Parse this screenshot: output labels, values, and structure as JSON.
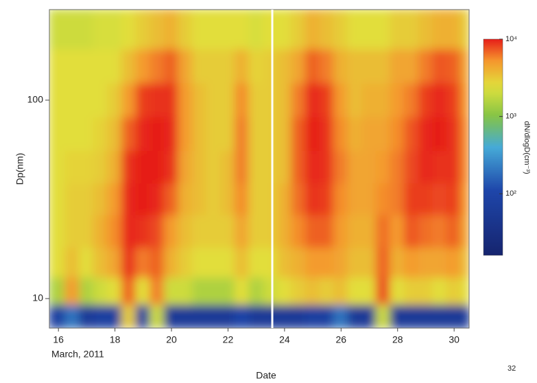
{
  "chart_data": {
    "type": "heatmap",
    "xlabel": "Date",
    "date_note": "March, 2011",
    "ylabel": "Dp(nm)",
    "colorbar_label": "dN/dlogD(cm⁻³)",
    "page_number": "32",
    "xlim": [
      15.68,
      30.53
    ],
    "xticks": [
      16,
      18,
      20,
      22,
      24,
      26,
      28,
      30
    ],
    "ylim": [
      7.1,
      286
    ],
    "yticks": [
      10,
      100
    ],
    "log_y": true,
    "zlim": [
      16,
      10000
    ],
    "zticks": [
      {
        "value": 10000,
        "label": "10⁴"
      },
      {
        "value": 1000,
        "label": "10³"
      },
      {
        "value": 100,
        "label": "10²"
      }
    ],
    "log_z": true,
    "x": [
      16,
      16.5,
      17,
      17.5,
      18,
      18.5,
      19,
      19.5,
      20,
      20.5,
      21,
      21.5,
      22,
      22.5,
      23,
      23.5,
      24,
      24.5,
      25,
      25.5,
      26,
      26.5,
      27,
      27.5,
      28,
      28.5,
      29,
      29.5,
      30,
      30.5
    ],
    "y": [
      8,
      11,
      15,
      22,
      32,
      46,
      68,
      100,
      150,
      220
    ],
    "z": [
      [
        80,
        1500,
        2500,
        2500,
        2500,
        2500,
        2500,
        2500,
        2500,
        2000
      ],
      [
        200,
        5000,
        3500,
        3000,
        3000,
        2800,
        2500,
        2500,
        2500,
        2000
      ],
      [
        60,
        1500,
        2500,
        3000,
        3000,
        2800,
        2500,
        2500,
        2500,
        2000
      ],
      [
        80,
        2000,
        3500,
        4000,
        3500,
        3000,
        2800,
        2500,
        2500,
        2200
      ],
      [
        80,
        2500,
        4500,
        5500,
        5000,
        4000,
        3500,
        3000,
        2500,
        2200
      ],
      [
        3000,
        7000,
        9000,
        9500,
        9500,
        9000,
        7000,
        5000,
        3500,
        2500
      ],
      [
        80,
        2500,
        6000,
        9000,
        10000,
        10000,
        9500,
        8500,
        5000,
        3000
      ],
      [
        2000,
        6000,
        7000,
        8000,
        9500,
        10000,
        10000,
        9000,
        6000,
        3500
      ],
      [
        60,
        2000,
        4000,
        5000,
        7000,
        9000,
        9500,
        9000,
        7000,
        4000
      ],
      [
        60,
        2000,
        3000,
        3500,
        4000,
        4500,
        5000,
        5000,
        4500,
        3000
      ],
      [
        60,
        1500,
        2500,
        3000,
        3500,
        3500,
        3500,
        3500,
        3000,
        2500
      ],
      [
        60,
        1500,
        2500,
        3000,
        3000,
        3000,
        3000,
        3000,
        3000,
        2500
      ],
      [
        60,
        1500,
        2500,
        3000,
        3500,
        3500,
        3000,
        3000,
        3000,
        2500
      ],
      [
        100,
        2500,
        3500,
        4500,
        5500,
        6000,
        6000,
        5500,
        4000,
        2500
      ],
      [
        60,
        1500,
        2500,
        3000,
        3000,
        3000,
        3000,
        3000,
        2800,
        2200
      ],
      [
        60,
        2000,
        2500,
        3000,
        3000,
        3000,
        3000,
        3000,
        3000,
        2500
      ],
      [
        60,
        2500,
        3500,
        4000,
        4000,
        3500,
        3500,
        3500,
        3500,
        2500
      ],
      [
        60,
        3000,
        4000,
        5500,
        6500,
        7000,
        7000,
        6000,
        4500,
        3000
      ],
      [
        80,
        3500,
        5000,
        7000,
        9000,
        9500,
        10000,
        9500,
        7000,
        4000
      ],
      [
        80,
        3000,
        5000,
        7000,
        8500,
        9000,
        9000,
        8500,
        6000,
        3500
      ],
      [
        200,
        3500,
        4500,
        5000,
        5500,
        6000,
        5500,
        5000,
        4000,
        3000
      ],
      [
        60,
        2500,
        3500,
        4000,
        4500,
        4500,
        4000,
        3500,
        3500,
        2500
      ],
      [
        60,
        2500,
        3500,
        4000,
        4500,
        4500,
        4500,
        4000,
        3500,
        2500
      ],
      [
        2000,
        8000,
        7000,
        6500,
        5500,
        5000,
        4500,
        4000,
        3500,
        2500
      ],
      [
        60,
        2500,
        4000,
        5000,
        6000,
        6000,
        5500,
        5000,
        4500,
        3000
      ],
      [
        60,
        3000,
        5000,
        7500,
        8500,
        8000,
        7500,
        6000,
        4500,
        3000
      ],
      [
        60,
        3000,
        4500,
        6500,
        8500,
        9500,
        9500,
        8500,
        6000,
        3500
      ],
      [
        60,
        2500,
        4500,
        6000,
        8000,
        9000,
        10000,
        9500,
        7500,
        4000
      ],
      [
        60,
        3000,
        5000,
        7000,
        8500,
        9000,
        9000,
        8500,
        7000,
        4000
      ],
      [
        60,
        2500,
        3500,
        4500,
        5000,
        5500,
        5500,
        5000,
        4500,
        3000
      ]
    ]
  }
}
